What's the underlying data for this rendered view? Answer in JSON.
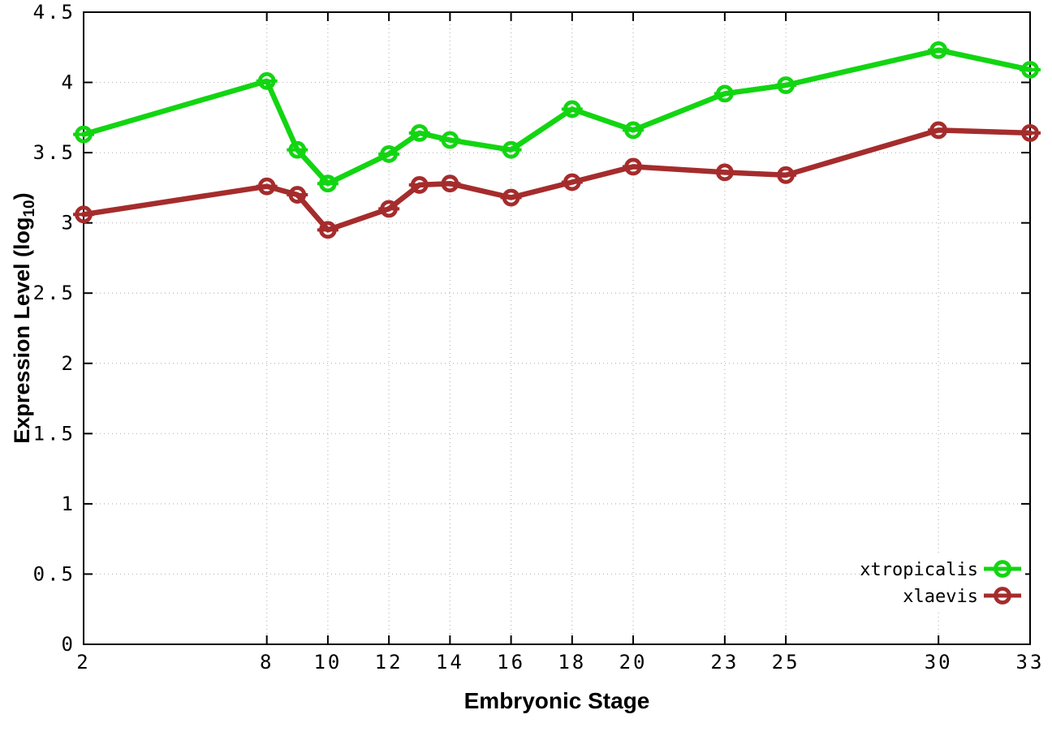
{
  "chart_data": {
    "type": "line",
    "xlabel": "Embryonic Stage",
    "ylabel": {
      "prefix": "Expression Level (log",
      "sub": "10",
      "suffix": ")"
    },
    "x": [
      2,
      8,
      9,
      10,
      12,
      13,
      14,
      16,
      18,
      20,
      23,
      25,
      30,
      33
    ],
    "series": [
      {
        "name": "xtropicalis",
        "color": "#12d512",
        "marker": "open-circle-errorbar",
        "values": [
          3.63,
          4.01,
          3.52,
          3.28,
          3.49,
          3.64,
          3.59,
          3.52,
          3.81,
          3.66,
          3.92,
          3.98,
          4.23,
          4.09
        ]
      },
      {
        "name": "xlaevis",
        "color": "#a52c2c",
        "marker": "open-circle-errorbar",
        "values": [
          3.06,
          3.26,
          3.2,
          2.95,
          3.1,
          3.27,
          3.28,
          3.18,
          3.29,
          3.4,
          3.36,
          3.34,
          3.66,
          3.64
        ]
      }
    ],
    "xlim": [
      2,
      33
    ],
    "ylim": [
      0,
      4.5
    ],
    "xticks": [
      2,
      8,
      10,
      12,
      14,
      16,
      18,
      20,
      23,
      25,
      30,
      33
    ],
    "yticks": [
      0,
      0.5,
      1,
      1.5,
      2,
      2.5,
      3,
      3.5,
      4,
      4.5
    ],
    "grid": true,
    "legend_position": "bottom-right"
  },
  "colors": {
    "background": "#ffffff",
    "grid": "#b8b8b8",
    "axis": "#000000",
    "text": "#000000",
    "xtropicalis": "#12d512",
    "xlaevis": "#a52c2c"
  }
}
